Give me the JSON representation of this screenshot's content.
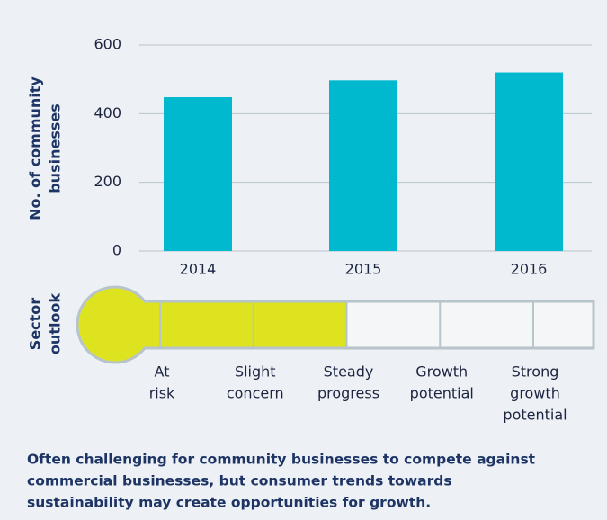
{
  "chart_data": {
    "type": "bar",
    "y_label": [
      "No. of community",
      "businesses"
    ],
    "categories": [
      "2014",
      "2015",
      "2016"
    ],
    "values": [
      448,
      497,
      520
    ],
    "color": "#00b9cf",
    "ylim": [
      0,
      600
    ],
    "yticks": [
      0,
      200,
      400,
      600
    ],
    "grid": true,
    "outlook": {
      "title": [
        "Sector",
        "outlook"
      ],
      "levels": [
        [
          "At",
          "risk"
        ],
        [
          "Slight",
          "concern"
        ],
        [
          "Steady",
          "progress"
        ],
        [
          "Growth",
          "potential"
        ],
        [
          "Strong",
          "growth",
          "potential"
        ]
      ],
      "level": 3,
      "color": "#dde31f"
    },
    "caption": [
      "Often challenging for community businesses to compete against",
      "commercial businesses, but consumer trends towards",
      "sustainability may create opportunities for growth."
    ]
  }
}
